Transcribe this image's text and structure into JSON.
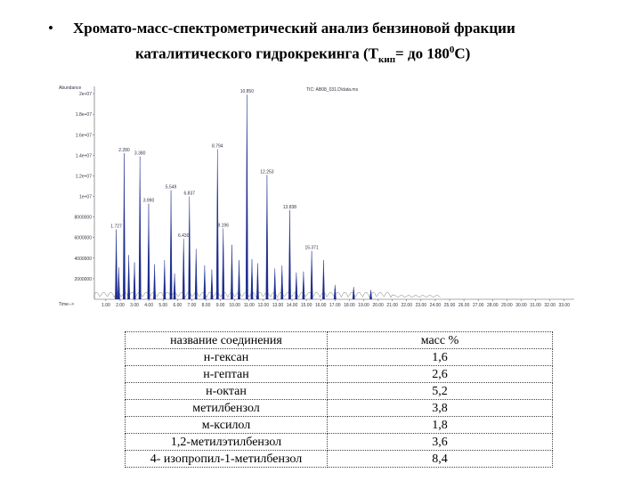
{
  "bullet": "•",
  "title": {
    "line1": "Хромато-масс-спектрометрический анализ бензиновой фракции",
    "line2_a": "каталитического гидрокрекинга (Т",
    "line2_sub": "кип",
    "line2_b": "= до 180",
    "line2_sup": "0",
    "line2_c": "С)"
  },
  "chart_data": {
    "type": "chromatogram",
    "y_label": "Abundance",
    "x_label": "Time-->",
    "trace_label": "TIC: AB08_031.D\\data.ms",
    "xlim": [
      0.2,
      33.7
    ],
    "ylim": [
      0,
      20700000
    ],
    "xticks": [
      {
        "value": 1,
        "label": "1.00"
      },
      {
        "value": 2,
        "label": "2.00"
      },
      {
        "value": 3,
        "label": "3.00"
      },
      {
        "value": 4,
        "label": "4.00"
      },
      {
        "value": 5,
        "label": "5.00"
      },
      {
        "value": 6,
        "label": "6.00"
      },
      {
        "value": 7,
        "label": "7.00"
      },
      {
        "value": 8,
        "label": "8.00"
      },
      {
        "value": 9,
        "label": "9.00"
      },
      {
        "value": 10,
        "label": "10.00"
      },
      {
        "value": 11,
        "label": "11.00"
      },
      {
        "value": 12,
        "label": "12.00"
      },
      {
        "value": 13,
        "label": "13.00"
      },
      {
        "value": 14,
        "label": "14.00"
      },
      {
        "value": 15,
        "label": "15.00"
      },
      {
        "value": 16,
        "label": "16.00"
      },
      {
        "value": 17,
        "label": "17.00"
      },
      {
        "value": 18,
        "label": "18.00"
      },
      {
        "value": 19,
        "label": "19.00"
      },
      {
        "value": 20,
        "label": "20.00"
      },
      {
        "value": 21,
        "label": "21.00"
      },
      {
        "value": 22,
        "label": "22.00"
      },
      {
        "value": 23,
        "label": "23.00"
      },
      {
        "value": 24,
        "label": "24.00"
      },
      {
        "value": 25,
        "label": "25.00"
      },
      {
        "value": 26,
        "label": "26.00"
      },
      {
        "value": 27,
        "label": "27.00"
      },
      {
        "value": 28,
        "label": "28.00"
      },
      {
        "value": 29,
        "label": "29.00"
      },
      {
        "value": 30,
        "label": "30.00"
      },
      {
        "value": 31,
        "label": "31.00"
      },
      {
        "value": 32,
        "label": "32.00"
      },
      {
        "value": 33,
        "label": "33.00"
      }
    ],
    "yticks": [
      2000000,
      4000000,
      6000000,
      8000000,
      {
        "value": 10000000,
        "label": "1e+07"
      },
      {
        "value": 12000000,
        "label": "1.2e+07"
      },
      {
        "value": 14000000,
        "label": "1.4e+07"
      },
      {
        "value": 16000000,
        "label": "1.6e+07"
      },
      {
        "value": 18000000,
        "label": "1.8e+07"
      },
      {
        "value": 20000000,
        "label": "2e+07"
      }
    ],
    "color": "#1a2a8c",
    "x": [
      1.727,
      2.28,
      3.38,
      3.99,
      5.549,
      6.43,
      6.837,
      8.794,
      9.196,
      10.85,
      12.253,
      13.838,
      15.371,
      1.9,
      2.6,
      3.0,
      4.4,
      5.1,
      5.8,
      7.3,
      7.9,
      8.4,
      9.8,
      10.3,
      11.2,
      11.6,
      12.8,
      13.3,
      14.3,
      14.8,
      16.2,
      17.0,
      18.3,
      19.5
    ],
    "values": [
      6800000,
      14200000,
      13900000,
      9300000,
      10600000,
      5900000,
      10000000,
      14600000,
      6900000,
      19900000,
      12100000,
      8660000,
      4700000,
      3100000,
      4300000,
      3600000,
      3400000,
      3800000,
      2500000,
      4900000,
      3300000,
      2900000,
      5300000,
      3800000,
      3900000,
      3500000,
      3000000,
      3300000,
      2600000,
      2700000,
      3800000,
      1400000,
      1200000,
      900000
    ],
    "peak_labels": [
      "1.727",
      "2.280",
      "3.380",
      "3.990",
      "5.549",
      "6.430",
      "6.837",
      "8.794",
      "9.196",
      "10.850",
      "12.253",
      "13.838",
      "15.371",
      null,
      null,
      null,
      null,
      null,
      null,
      null,
      null,
      null,
      null,
      null,
      null,
      null,
      null,
      null,
      null,
      null,
      null,
      null,
      null,
      null
    ]
  },
  "table": {
    "header": [
      "название соединения",
      "масс %"
    ],
    "rows": [
      [
        "н-гексан",
        "1,6"
      ],
      [
        "н-гептан",
        "2,6"
      ],
      [
        "н-октан",
        "5,2"
      ],
      [
        "метилбензол",
        "3,8"
      ],
      [
        "м-ксилол",
        "1,8"
      ],
      [
        "1,2-метилэтилбензол",
        "3,6"
      ],
      [
        "4- изопропил-1-метилбензол",
        "8,4"
      ]
    ]
  }
}
